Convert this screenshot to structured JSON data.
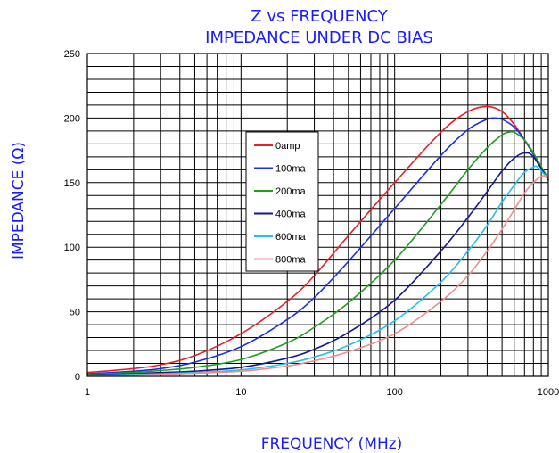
{
  "chart_data": {
    "type": "line",
    "title": [
      "Z vs FREQUENCY",
      "IMPEDANCE UNDER DC BIAS"
    ],
    "xlabel": "FREQUENCY (MHz)",
    "ylabel": "IMPEDANCE (Ω)",
    "x_scale": "log",
    "xlim": [
      1,
      1000
    ],
    "ylim": [
      0,
      250
    ],
    "x_ticks": [
      "1",
      "10",
      "100",
      "1000"
    ],
    "y_ticks": [
      "0",
      "50",
      "100",
      "150",
      "200",
      "250"
    ],
    "grid": true,
    "legend_position": "center-left",
    "series": [
      {
        "name": "0amp",
        "color": "#e8202a",
        "x": [
          1,
          2,
          3,
          5,
          10,
          20,
          30,
          50,
          100,
          200,
          300,
          400,
          500,
          600,
          700,
          800,
          1000
        ],
        "y": [
          3,
          6,
          9,
          16,
          33,
          58,
          78,
          109,
          150,
          189,
          205,
          209,
          205,
          195,
          183,
          172,
          152
        ]
      },
      {
        "name": "100ma",
        "color": "#1a2ee8",
        "x": [
          1,
          2,
          3,
          5,
          10,
          20,
          30,
          50,
          100,
          200,
          300,
          400,
          450,
          500,
          600,
          700,
          800,
          1000
        ],
        "y": [
          2,
          4,
          6,
          11,
          23,
          44,
          61,
          89,
          130,
          171,
          191,
          199,
          200,
          199,
          193,
          183,
          172,
          152
        ]
      },
      {
        "name": "200ma",
        "color": "#1ea01e",
        "x": [
          1,
          2,
          3,
          5,
          10,
          20,
          30,
          50,
          100,
          200,
          300,
          400,
          500,
          550,
          600,
          700,
          800,
          1000
        ],
        "y": [
          1.5,
          3,
          4.5,
          7,
          13,
          26,
          38,
          57,
          90,
          133,
          160,
          177,
          187,
          189,
          189,
          183,
          173,
          153
        ]
      },
      {
        "name": "400ma",
        "color": "#161690",
        "x": [
          1,
          2,
          3,
          5,
          10,
          20,
          30,
          50,
          100,
          200,
          300,
          400,
          500,
          600,
          700,
          800,
          1000
        ],
        "y": [
          1,
          2,
          3,
          4,
          7,
          14,
          21,
          34,
          59,
          97,
          123,
          143,
          159,
          169,
          173,
          170,
          152
        ]
      },
      {
        "name": "600ma",
        "color": "#24c0e8",
        "x": [
          1,
          2,
          3,
          5,
          10,
          20,
          30,
          50,
          100,
          200,
          300,
          400,
          500,
          600,
          700,
          800,
          850,
          1000
        ],
        "y": [
          0.5,
          1.5,
          2,
          3,
          5,
          10,
          15,
          24,
          43,
          73,
          97,
          117,
          135,
          148,
          158,
          162,
          162,
          153
        ]
      },
      {
        "name": "800ma",
        "color": "#f08c8c",
        "x": [
          1,
          2,
          3,
          5,
          10,
          20,
          30,
          50,
          100,
          200,
          300,
          400,
          500,
          600,
          700,
          800,
          900,
          1000
        ],
        "y": [
          0.5,
          1,
          1.5,
          2.5,
          4,
          8,
          12,
          19,
          33,
          58,
          78,
          97,
          114,
          129,
          142,
          150,
          155,
          155
        ]
      }
    ]
  }
}
